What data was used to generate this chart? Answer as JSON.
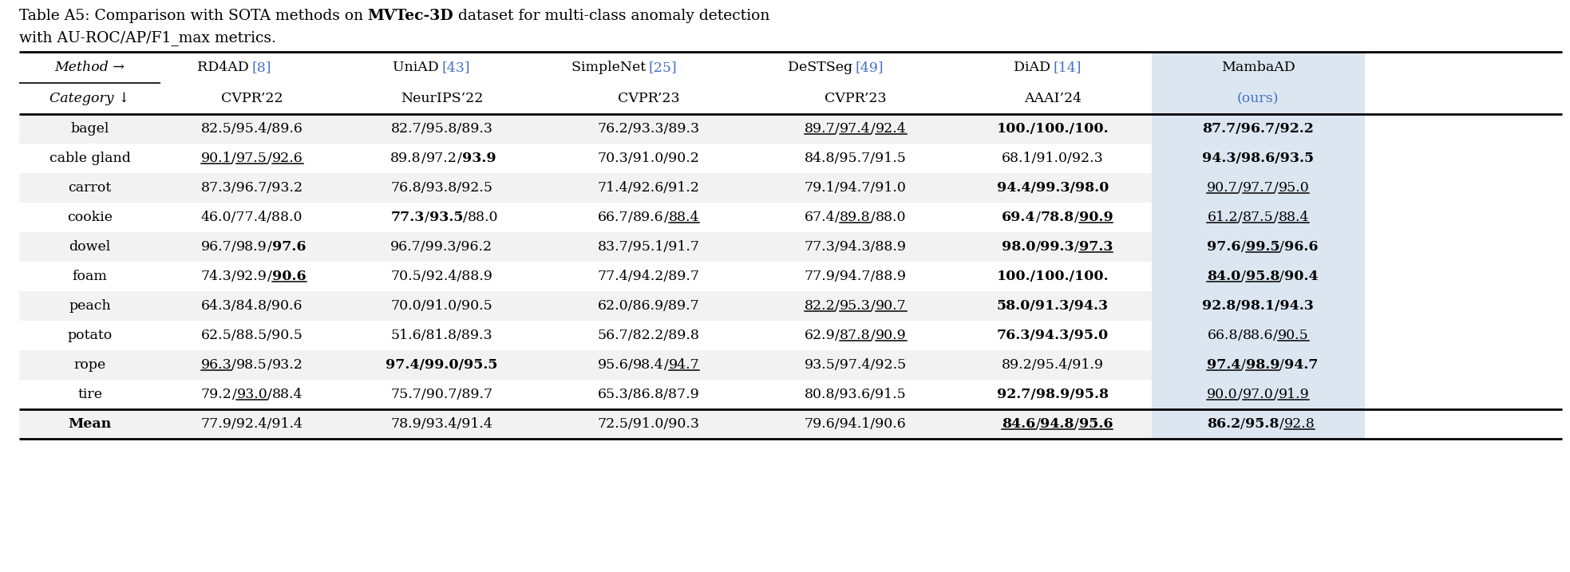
{
  "title_line1_plain": "Table A5: Comparison with SOTA methods on ",
  "title_bold": "MVTec-3D",
  "title_line1_end": " dataset for multi-class anomaly detection",
  "title_line2": "with AU-ROC/AP/F1_max metrics.",
  "categories": [
    "bagel",
    "cable gland",
    "carrot",
    "cookie",
    "dowel",
    "foam",
    "peach",
    "potato",
    "rope",
    "tire",
    "Mean"
  ],
  "data": {
    "bagel": [
      "82.5/95.4/89.6",
      "82.7/95.8/89.3",
      "76.2/93.3/89.3",
      "89.7/97.4/92.4",
      "100./100./100.",
      "87.7/96.7/92.2"
    ],
    "cable gland": [
      "90.1/97.5/92.6",
      "89.8/97.2/93.9",
      "70.3/91.0/90.2",
      "84.8/95.7/91.5",
      "68.1/91.0/92.3",
      "94.3/98.6/93.5"
    ],
    "carrot": [
      "87.3/96.7/93.2",
      "76.8/93.8/92.5",
      "71.4/92.6/91.2",
      "79.1/94.7/91.0",
      "94.4/99.3/98.0",
      "90.7/97.7/95.0"
    ],
    "cookie": [
      "46.0/77.4/88.0",
      "77.3/93.5/88.0",
      "66.7/89.6/88.4",
      "67.4/89.8/88.0",
      "69.4/78.8/90.9",
      "61.2/87.5/88.4"
    ],
    "dowel": [
      "96.7/98.9/97.6",
      "96.7/99.3/96.2",
      "83.7/95.1/91.7",
      "77.3/94.3/88.9",
      "98.0/99.3/97.3",
      "97.6/99.5/96.6"
    ],
    "foam": [
      "74.3/92.9/90.6",
      "70.5/92.4/88.9",
      "77.4/94.2/89.7",
      "77.9/94.7/88.9",
      "100./100./100.",
      "84.0/95.8/90.4"
    ],
    "peach": [
      "64.3/84.8/90.6",
      "70.0/91.0/90.5",
      "62.0/86.9/89.7",
      "82.2/95.3/90.7",
      "58.0/91.3/94.3",
      "92.8/98.1/94.3"
    ],
    "potato": [
      "62.5/88.5/90.5",
      "51.6/81.8/89.3",
      "56.7/82.2/89.8",
      "62.9/87.8/90.9",
      "76.3/94.3/95.0",
      "66.8/88.6/90.5"
    ],
    "rope": [
      "96.3/98.5/93.2",
      "97.4/99.0/95.5",
      "95.6/98.4/94.7",
      "93.5/97.4/92.5",
      "89.2/95.4/91.9",
      "97.4/98.9/94.7"
    ],
    "tire": [
      "79.2/93.0/88.4",
      "75.7/90.7/89.7",
      "65.3/86.8/87.9",
      "80.8/93.6/91.5",
      "92.7/98.9/95.8",
      "90.0/97.0/91.9"
    ],
    "Mean": [
      "77.9/92.4/91.4",
      "78.9/93.4/91.4",
      "72.5/91.0/90.3",
      "79.6/94.1/90.6",
      "84.6/94.8/95.6",
      "86.2/95.8/92.8"
    ]
  },
  "bold_cells": {
    "bagel": [
      4,
      5
    ],
    "cable gland": [
      5
    ],
    "carrot": [
      4
    ],
    "cookie": [
      4
    ],
    "dowel": [
      4,
      5
    ],
    "foam": [
      4,
      5
    ],
    "peach": [
      4,
      5
    ],
    "potato": [
      4
    ],
    "rope": [
      5
    ],
    "tire": [
      4
    ],
    "Mean": [
      4
    ]
  },
  "bold_partial": {
    "cable gland": {
      "col": 1,
      "parts": [
        2
      ]
    },
    "cookie": {
      "col": 1,
      "parts": [
        0,
        1
      ]
    },
    "dowel": {
      "col": 0,
      "parts": [
        2
      ]
    },
    "foam": {
      "col": 0,
      "parts": [
        2
      ]
    },
    "rope": {
      "col": 1,
      "parts": [
        0,
        1,
        2
      ]
    },
    "Mean": {
      "col": 5,
      "parts": [
        0,
        1
      ]
    }
  },
  "underline_cells": {
    "bagel": [
      [
        3,
        [
          0,
          1,
          2
        ]
      ]
    ],
    "cable gland": [
      [
        0,
        [
          0,
          1,
          2
        ]
      ]
    ],
    "carrot": [
      [
        5,
        [
          0,
          1,
          2
        ]
      ]
    ],
    "cookie": [
      [
        2,
        [
          2
        ]
      ],
      [
        3,
        [
          1
        ]
      ],
      [
        4,
        [
          2
        ]
      ],
      [
        5,
        [
          0,
          1,
          2
        ]
      ]
    ],
    "dowel": [
      [
        4,
        [
          2
        ]
      ],
      [
        5,
        [
          1
        ]
      ]
    ],
    "foam": [
      [
        0,
        [
          2
        ]
      ],
      [
        5,
        [
          0,
          1
        ]
      ]
    ],
    "peach": [
      [
        3,
        [
          0,
          1,
          2
        ]
      ]
    ],
    "potato": [
      [
        3,
        [
          1,
          2
        ]
      ],
      [
        5,
        [
          2
        ]
      ]
    ],
    "rope": [
      [
        0,
        [
          0
        ]
      ],
      [
        2,
        [
          2
        ]
      ],
      [
        5,
        [
          0,
          1
        ]
      ]
    ],
    "tire": [
      [
        0,
        [
          1
        ]
      ],
      [
        5,
        [
          0,
          1,
          2
        ]
      ]
    ],
    "Mean": [
      [
        4,
        [
          0,
          1,
          2
        ]
      ],
      [
        5,
        [
          2
        ]
      ]
    ]
  },
  "bg_last_col": "#dce6f1",
  "bg_odd": "#f2f2f2",
  "bg_even": "#ffffff",
  "ref_color": "#4472c4",
  "figsize": [
    19.67,
    7.17
  ],
  "dpi": 100
}
